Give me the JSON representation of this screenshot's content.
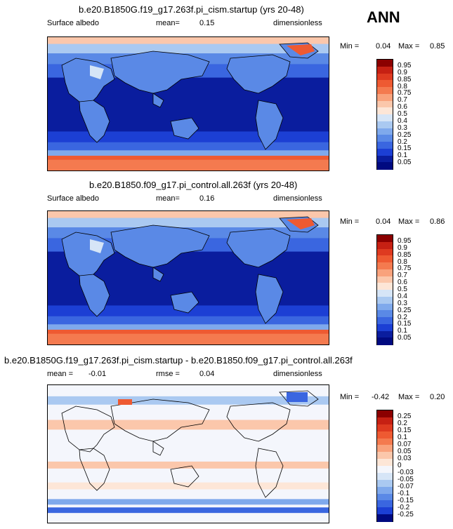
{
  "season_label": "ANN",
  "chart_data": [
    {
      "type": "heatmap",
      "title": "b.e20.B1850G.f19_g17.263f.pi_cism.startup (yrs 20-48)",
      "field_label": "Surface albedo",
      "mean_label": "mean=",
      "mean_value": "0.15",
      "units": "dimensionless",
      "min_label": "Min =",
      "min_value": "0.04",
      "max_label": "Max =",
      "max_value": "0.85",
      "colorbar_levels": [
        "0.95",
        "0.9",
        "0.85",
        "0.8",
        "0.75",
        "0.7",
        "0.6",
        "0.5",
        "0.4",
        "0.3",
        "0.25",
        "0.2",
        "0.15",
        "0.1",
        "0.05"
      ],
      "colorbar_colors": [
        "#8b0000",
        "#c62013",
        "#de3a20",
        "#ee5a32",
        "#f47a4f",
        "#f9a27c",
        "#fbc7ab",
        "#fde6d7",
        "#d6e5f7",
        "#aac9f1",
        "#7fa9ec",
        "#5a89e6",
        "#3a66e0",
        "#1c3fd4",
        "#0a1d9e",
        "#000a80"
      ]
    },
    {
      "type": "heatmap",
      "title": "b.e20.B1850.f09_g17.pi_control.all.263f (yrs 20-48)",
      "field_label": "Surface albedo",
      "mean_label": "mean=",
      "mean_value": "0.16",
      "units": "dimensionless",
      "min_label": "Min =",
      "min_value": "0.04",
      "max_label": "Max =",
      "max_value": "0.86",
      "colorbar_levels": [
        "0.95",
        "0.9",
        "0.85",
        "0.8",
        "0.75",
        "0.7",
        "0.6",
        "0.5",
        "0.4",
        "0.3",
        "0.25",
        "0.2",
        "0.15",
        "0.1",
        "0.05"
      ],
      "colorbar_colors": [
        "#8b0000",
        "#c62013",
        "#de3a20",
        "#ee5a32",
        "#f47a4f",
        "#f9a27c",
        "#fbc7ab",
        "#fde6d7",
        "#d6e5f7",
        "#aac9f1",
        "#7fa9ec",
        "#5a89e6",
        "#3a66e0",
        "#1c3fd4",
        "#0a1d9e",
        "#000a80"
      ]
    },
    {
      "type": "heatmap",
      "title": "b.e20.B1850G.f19_g17.263f.pi_cism.startup - b.e20.B1850.f09_g17.pi_control.all.263f",
      "mean_label": "mean =",
      "mean_value": "-0.01",
      "rmse_label": "rmse =",
      "rmse_value": "0.04",
      "units": "dimensionless",
      "min_label": "Min =",
      "min_value": "-0.42",
      "max_label": "Max =",
      "max_value": "0.20",
      "colorbar_levels": [
        "0.25",
        "0.2",
        "0.15",
        "0.1",
        "0.07",
        "0.05",
        "0.03",
        "0",
        "-0.03",
        "-0.05",
        "-0.07",
        "-0.1",
        "-0.15",
        "-0.2",
        "-0.25"
      ],
      "colorbar_colors": [
        "#8b0000",
        "#c62013",
        "#de3a20",
        "#ee5a32",
        "#f47a4f",
        "#f9a27c",
        "#fbc7ab",
        "#fde6d7",
        "#f4f6fc",
        "#d6e5f7",
        "#aac9f1",
        "#7fa9ec",
        "#5a89e6",
        "#3a66e0",
        "#1c3fd4",
        "#000a80"
      ]
    }
  ]
}
